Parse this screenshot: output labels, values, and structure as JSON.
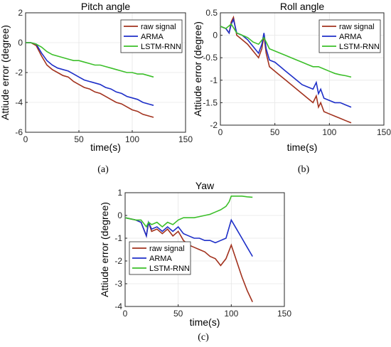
{
  "chart_data": [
    {
      "type": "line",
      "title": "Pitch angle",
      "xlabel": "time(s)",
      "ylabel": "Attiude error (degree)",
      "panel": "(a)",
      "xlim": [
        0,
        150
      ],
      "ylim": [
        -6,
        2
      ],
      "xticks": [
        0,
        50,
        100,
        150
      ],
      "yticks": [
        -6,
        -4,
        -2,
        0,
        2
      ],
      "grid": true,
      "legend_position": "top-right",
      "series": [
        {
          "name": "raw signal",
          "color": "#a2321e",
          "x": [
            0,
            5,
            10,
            15,
            20,
            25,
            30,
            35,
            40,
            45,
            50,
            55,
            60,
            65,
            70,
            75,
            80,
            85,
            90,
            95,
            100,
            105,
            110,
            115,
            120
          ],
          "y": [
            0,
            0,
            -0.2,
            -0.9,
            -1.5,
            -1.8,
            -2.0,
            -2.2,
            -2.3,
            -2.6,
            -2.8,
            -3.0,
            -3.1,
            -3.3,
            -3.4,
            -3.6,
            -3.8,
            -4.0,
            -4.1,
            -4.3,
            -4.5,
            -4.6,
            -4.8,
            -4.9,
            -5.0
          ]
        },
        {
          "name": "ARMA",
          "color": "#1e2fc8",
          "x": [
            0,
            5,
            10,
            15,
            20,
            25,
            30,
            35,
            40,
            45,
            50,
            55,
            60,
            65,
            70,
            75,
            80,
            85,
            90,
            95,
            100,
            105,
            110,
            115,
            120
          ],
          "y": [
            0,
            0,
            -0.1,
            -0.7,
            -1.2,
            -1.5,
            -1.7,
            -1.8,
            -1.9,
            -2.1,
            -2.3,
            -2.5,
            -2.6,
            -2.7,
            -2.8,
            -3.0,
            -3.1,
            -3.3,
            -3.4,
            -3.6,
            -3.7,
            -3.8,
            -4.0,
            -4.1,
            -4.2
          ]
        },
        {
          "name": "LSTM-RNN",
          "color": "#3cbf2a",
          "x": [
            0,
            5,
            10,
            15,
            20,
            25,
            30,
            35,
            40,
            45,
            50,
            55,
            60,
            65,
            70,
            75,
            80,
            85,
            90,
            95,
            100,
            105,
            110,
            115,
            120
          ],
          "y": [
            0,
            0,
            -0.1,
            -0.3,
            -0.6,
            -0.8,
            -0.9,
            -1.0,
            -1.1,
            -1.2,
            -1.2,
            -1.3,
            -1.4,
            -1.5,
            -1.5,
            -1.6,
            -1.7,
            -1.8,
            -1.9,
            -2.0,
            -2.0,
            -2.1,
            -2.1,
            -2.2,
            -2.3
          ]
        }
      ]
    },
    {
      "type": "line",
      "title": "Roll angle",
      "xlabel": "time(s)",
      "ylabel": "Attiude error (degree)",
      "panel": "(b)",
      "xlim": [
        0,
        150
      ],
      "ylim": [
        -2,
        0.5
      ],
      "xticks": [
        0,
        50,
        100,
        150
      ],
      "yticks": [
        -2,
        -1.5,
        -1,
        -0.5,
        0,
        0.5
      ],
      "grid": true,
      "legend_position": "top-right",
      "series": [
        {
          "name": "raw signal",
          "color": "#a2321e",
          "x": [
            0,
            5,
            8,
            10,
            12,
            15,
            20,
            25,
            30,
            35,
            38,
            40,
            42,
            45,
            50,
            55,
            60,
            65,
            70,
            75,
            80,
            85,
            88,
            90,
            92,
            95,
            100,
            105,
            110,
            115,
            120
          ],
          "y": [
            0.2,
            0.15,
            0.05,
            0.3,
            0.4,
            0.0,
            -0.1,
            -0.2,
            -0.35,
            -0.5,
            -0.3,
            0.0,
            -0.4,
            -0.7,
            -0.8,
            -0.9,
            -1.0,
            -1.1,
            -1.2,
            -1.3,
            -1.4,
            -1.5,
            -1.35,
            -1.6,
            -1.5,
            -1.7,
            -1.75,
            -1.8,
            -1.85,
            -1.9,
            -1.95
          ]
        },
        {
          "name": "ARMA",
          "color": "#1e2fc8",
          "x": [
            0,
            5,
            8,
            10,
            12,
            15,
            20,
            25,
            30,
            35,
            38,
            40,
            42,
            45,
            50,
            55,
            60,
            65,
            70,
            75,
            80,
            85,
            88,
            90,
            92,
            95,
            100,
            105,
            110,
            115,
            120
          ],
          "y": [
            0.2,
            0.15,
            0.05,
            0.25,
            0.35,
            0.05,
            0.0,
            -0.1,
            -0.25,
            -0.4,
            -0.2,
            0.05,
            -0.3,
            -0.55,
            -0.6,
            -0.7,
            -0.8,
            -0.9,
            -1.0,
            -1.1,
            -1.15,
            -1.2,
            -1.05,
            -1.3,
            -1.2,
            -1.4,
            -1.45,
            -1.5,
            -1.5,
            -1.55,
            -1.6
          ]
        },
        {
          "name": "LSTM-RNN",
          "color": "#3cbf2a",
          "x": [
            0,
            5,
            10,
            15,
            20,
            25,
            30,
            35,
            40,
            45,
            50,
            55,
            60,
            65,
            70,
            75,
            80,
            85,
            90,
            95,
            100,
            105,
            110,
            115,
            120
          ],
          "y": [
            0.2,
            0.15,
            0.25,
            0.05,
            0.0,
            -0.05,
            -0.15,
            -0.2,
            -0.05,
            -0.3,
            -0.35,
            -0.4,
            -0.45,
            -0.5,
            -0.55,
            -0.6,
            -0.65,
            -0.7,
            -0.7,
            -0.75,
            -0.8,
            -0.85,
            -0.88,
            -0.9,
            -0.93
          ]
        }
      ]
    },
    {
      "type": "line",
      "title": "Yaw",
      "xlabel": "time(s)",
      "ylabel": "Attiude error (degree)",
      "panel": "(c)",
      "xlim": [
        0,
        150
      ],
      "ylim": [
        -4,
        1
      ],
      "xticks": [
        0,
        50,
        100,
        150
      ],
      "yticks": [
        -4,
        -3,
        -2,
        -1,
        0,
        1
      ],
      "grid": true,
      "legend_position": "bottom-left",
      "series": [
        {
          "name": "raw signal",
          "color": "#a2321e",
          "x": [
            0,
            10,
            15,
            20,
            22,
            25,
            30,
            35,
            40,
            45,
            50,
            55,
            60,
            65,
            70,
            75,
            80,
            85,
            90,
            95,
            100,
            105,
            110,
            115,
            120
          ],
          "y": [
            -0.1,
            -0.2,
            -0.3,
            -0.9,
            -0.3,
            -0.7,
            -0.6,
            -0.8,
            -0.6,
            -0.9,
            -0.7,
            -1.1,
            -1.3,
            -1.4,
            -1.5,
            -1.6,
            -1.8,
            -1.9,
            -2.2,
            -1.9,
            -1.3,
            -2.0,
            -2.7,
            -3.3,
            -3.8
          ]
        },
        {
          "name": "ARMA",
          "color": "#1e2fc8",
          "x": [
            0,
            10,
            15,
            20,
            22,
            25,
            30,
            35,
            40,
            45,
            50,
            55,
            60,
            65,
            70,
            75,
            80,
            85,
            90,
            95,
            100,
            105,
            110,
            115,
            120
          ],
          "y": [
            -0.1,
            -0.2,
            -0.3,
            -0.9,
            -0.3,
            -0.6,
            -0.5,
            -0.7,
            -0.5,
            -0.7,
            -0.5,
            -0.8,
            -0.9,
            -1.0,
            -1.0,
            -1.1,
            -1.1,
            -1.2,
            -1.1,
            -1.0,
            -0.2,
            -0.6,
            -1.0,
            -1.4,
            -1.8
          ]
        },
        {
          "name": "LSTM-RNN",
          "color": "#3cbf2a",
          "x": [
            0,
            10,
            15,
            20,
            22,
            25,
            30,
            35,
            40,
            45,
            50,
            55,
            60,
            65,
            70,
            75,
            80,
            85,
            90,
            95,
            98,
            100,
            105,
            110,
            115,
            120
          ],
          "y": [
            -0.1,
            -0.2,
            -0.2,
            -0.5,
            -0.3,
            -0.4,
            -0.3,
            -0.5,
            -0.3,
            -0.4,
            -0.2,
            -0.1,
            -0.1,
            -0.1,
            -0.05,
            0.0,
            0.05,
            0.15,
            0.25,
            0.4,
            0.6,
            0.85,
            0.85,
            0.85,
            0.82,
            0.8
          ]
        }
      ]
    }
  ]
}
